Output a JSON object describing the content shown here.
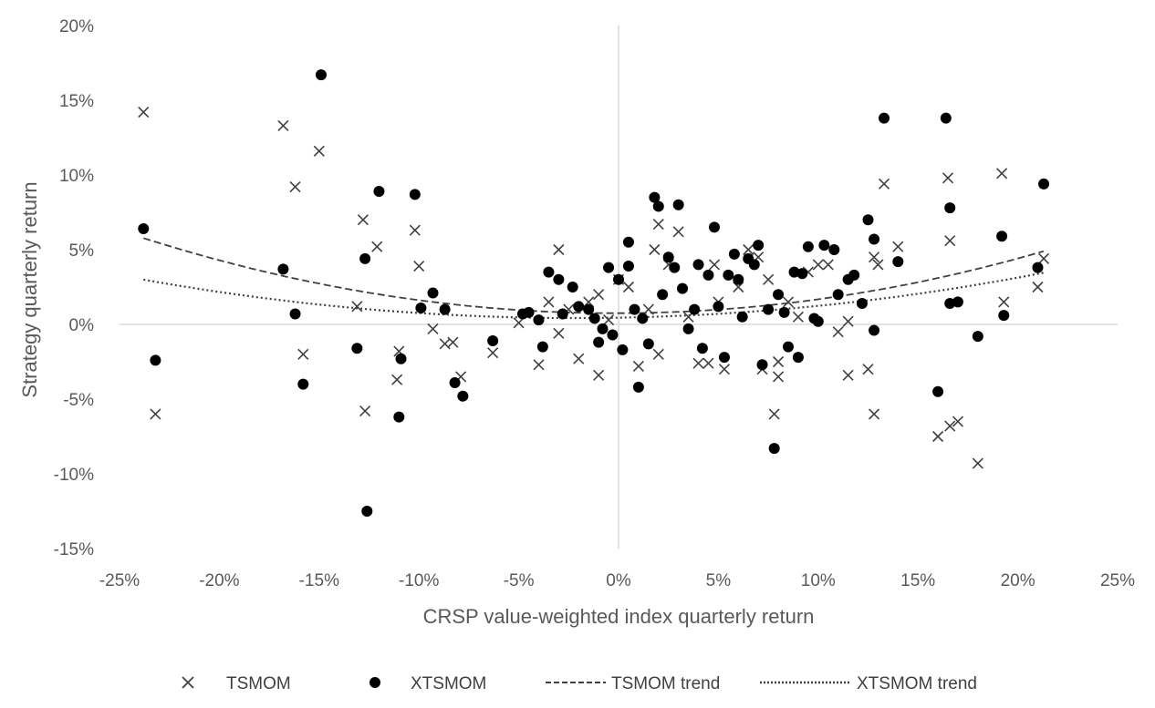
{
  "chart_data": {
    "type": "scatter",
    "title": "",
    "xlabel": "CRSP value-weighted index quarterly return",
    "ylabel": "Strategy quarterly return",
    "xlim": [
      -0.25,
      0.25
    ],
    "ylim": [
      -0.15,
      0.2
    ],
    "xticks": [
      -0.25,
      -0.2,
      -0.15,
      -0.1,
      -0.05,
      0,
      0.05,
      0.1,
      0.15,
      0.2,
      0.25
    ],
    "yticks": [
      -0.15,
      -0.1,
      -0.05,
      0,
      0.05,
      0.1,
      0.15,
      0.2
    ],
    "x_tick_labels": [
      "-25%",
      "-20%",
      "-15%",
      "-10%",
      "-5%",
      "0%",
      "5%",
      "10%",
      "15%",
      "20%",
      "25%"
    ],
    "y_tick_labels": [
      "-15%",
      "-10%",
      "-5%",
      "0%",
      "5%",
      "10%",
      "15%",
      "20%"
    ],
    "grid": false,
    "legend_position": "bottom",
    "colors": {
      "text": "#595959",
      "axis_line": "#d9d9d9",
      "marker": "#000000",
      "x_marker": "#404040",
      "trend": "#404040"
    },
    "series": [
      {
        "name": "TSMOM",
        "marker": "x",
        "points": [
          [
            -0.238,
            0.142
          ],
          [
            -0.232,
            -0.06
          ],
          [
            -0.168,
            0.133
          ],
          [
            -0.162,
            0.092
          ],
          [
            -0.158,
            -0.02
          ],
          [
            -0.15,
            0.116
          ],
          [
            -0.131,
            0.012
          ],
          [
            -0.128,
            0.07
          ],
          [
            -0.127,
            -0.058
          ],
          [
            -0.121,
            0.052
          ],
          [
            -0.111,
            -0.037
          ],
          [
            -0.11,
            -0.018
          ],
          [
            -0.102,
            0.063
          ],
          [
            -0.1,
            0.039
          ],
          [
            -0.093,
            -0.003
          ],
          [
            -0.087,
            -0.013
          ],
          [
            -0.083,
            -0.012
          ],
          [
            -0.079,
            -0.035
          ],
          [
            -0.063,
            -0.019
          ],
          [
            -0.05,
            0.001
          ],
          [
            -0.04,
            -0.027
          ],
          [
            -0.035,
            0.015
          ],
          [
            -0.03,
            0.05
          ],
          [
            -0.03,
            -0.006
          ],
          [
            -0.025,
            0.01
          ],
          [
            -0.02,
            -0.023
          ],
          [
            -0.015,
            0.015
          ],
          [
            -0.01,
            0.02
          ],
          [
            -0.01,
            -0.034
          ],
          [
            -0.005,
            0.003
          ],
          [
            0.0,
            0.03
          ],
          [
            0.005,
            0.025
          ],
          [
            0.01,
            -0.028
          ],
          [
            0.015,
            0.01
          ],
          [
            0.018,
            0.05
          ],
          [
            0.02,
            0.067
          ],
          [
            0.02,
            -0.02
          ],
          [
            0.025,
            0.04
          ],
          [
            0.03,
            0.062
          ],
          [
            0.035,
            0.005
          ],
          [
            0.04,
            -0.026
          ],
          [
            0.045,
            -0.026
          ],
          [
            0.048,
            0.04
          ],
          [
            0.05,
            0.015
          ],
          [
            0.053,
            -0.03
          ],
          [
            0.06,
            0.025
          ],
          [
            0.065,
            0.05
          ],
          [
            0.07,
            0.045
          ],
          [
            0.072,
            -0.03
          ],
          [
            0.075,
            0.03
          ],
          [
            0.078,
            -0.06
          ],
          [
            0.08,
            -0.025
          ],
          [
            0.08,
            -0.035
          ],
          [
            0.085,
            0.015
          ],
          [
            0.09,
            0.005
          ],
          [
            0.095,
            0.035
          ],
          [
            0.1,
            0.04
          ],
          [
            0.105,
            0.04
          ],
          [
            0.11,
            -0.005
          ],
          [
            0.115,
            -0.034
          ],
          [
            0.115,
            0.002
          ],
          [
            0.125,
            -0.03
          ],
          [
            0.128,
            0.045
          ],
          [
            0.128,
            -0.06
          ],
          [
            0.13,
            0.04
          ],
          [
            0.133,
            0.094
          ],
          [
            0.14,
            0.052
          ],
          [
            0.16,
            -0.075
          ],
          [
            0.165,
            0.098
          ],
          [
            0.166,
            0.056
          ],
          [
            0.166,
            -0.068
          ],
          [
            0.17,
            -0.065
          ],
          [
            0.18,
            -0.093
          ],
          [
            0.192,
            0.101
          ],
          [
            0.193,
            0.015
          ],
          [
            0.21,
            0.025
          ],
          [
            0.213,
            0.044
          ]
        ]
      },
      {
        "name": "XTSMOM",
        "marker": "dot",
        "points": [
          [
            -0.238,
            0.064
          ],
          [
            -0.232,
            -0.024
          ],
          [
            -0.168,
            0.037
          ],
          [
            -0.162,
            0.007
          ],
          [
            -0.158,
            -0.04
          ],
          [
            -0.149,
            0.167
          ],
          [
            -0.131,
            -0.016
          ],
          [
            -0.127,
            0.044
          ],
          [
            -0.126,
            -0.125
          ],
          [
            -0.12,
            0.089
          ],
          [
            -0.11,
            -0.062
          ],
          [
            -0.109,
            -0.023
          ],
          [
            -0.102,
            0.087
          ],
          [
            -0.099,
            0.011
          ],
          [
            -0.093,
            0.021
          ],
          [
            -0.087,
            0.01
          ],
          [
            -0.082,
            -0.039
          ],
          [
            -0.078,
            -0.048
          ],
          [
            -0.063,
            -0.011
          ],
          [
            -0.048,
            0.007
          ],
          [
            -0.045,
            0.008
          ],
          [
            -0.04,
            0.003
          ],
          [
            -0.038,
            -0.015
          ],
          [
            -0.035,
            0.035
          ],
          [
            -0.03,
            0.03
          ],
          [
            -0.028,
            0.007
          ],
          [
            -0.023,
            0.025
          ],
          [
            -0.02,
            0.012
          ],
          [
            -0.015,
            0.01
          ],
          [
            -0.012,
            0.004
          ],
          [
            -0.01,
            -0.012
          ],
          [
            -0.008,
            -0.003
          ],
          [
            -0.005,
            0.038
          ],
          [
            -0.003,
            -0.007
          ],
          [
            0.0,
            0.03
          ],
          [
            0.002,
            -0.017
          ],
          [
            0.005,
            0.039
          ],
          [
            0.005,
            0.055
          ],
          [
            0.008,
            0.01
          ],
          [
            0.01,
            -0.042
          ],
          [
            0.012,
            0.004
          ],
          [
            0.015,
            -0.013
          ],
          [
            0.018,
            0.085
          ],
          [
            0.02,
            0.079
          ],
          [
            0.022,
            0.02
          ],
          [
            0.025,
            0.045
          ],
          [
            0.028,
            0.038
          ],
          [
            0.03,
            0.08
          ],
          [
            0.032,
            0.024
          ],
          [
            0.035,
            -0.003
          ],
          [
            0.038,
            0.01
          ],
          [
            0.04,
            0.04
          ],
          [
            0.042,
            -0.016
          ],
          [
            0.045,
            0.033
          ],
          [
            0.048,
            0.065
          ],
          [
            0.05,
            0.012
          ],
          [
            0.053,
            -0.022
          ],
          [
            0.055,
            0.033
          ],
          [
            0.058,
            0.047
          ],
          [
            0.06,
            0.03
          ],
          [
            0.062,
            0.005
          ],
          [
            0.065,
            0.044
          ],
          [
            0.068,
            0.04
          ],
          [
            0.07,
            0.053
          ],
          [
            0.072,
            -0.027
          ],
          [
            0.075,
            0.01
          ],
          [
            0.078,
            -0.083
          ],
          [
            0.08,
            0.02
          ],
          [
            0.083,
            0.008
          ],
          [
            0.085,
            -0.015
          ],
          [
            0.088,
            0.035
          ],
          [
            0.09,
            -0.022
          ],
          [
            0.092,
            0.034
          ],
          [
            0.095,
            0.052
          ],
          [
            0.098,
            0.004
          ],
          [
            0.1,
            0.002
          ],
          [
            0.103,
            0.053
          ],
          [
            0.108,
            0.05
          ],
          [
            0.11,
            0.02
          ],
          [
            0.115,
            0.03
          ],
          [
            0.118,
            0.033
          ],
          [
            0.122,
            0.014
          ],
          [
            0.125,
            0.07
          ],
          [
            0.128,
            -0.004
          ],
          [
            0.128,
            0.057
          ],
          [
            0.133,
            0.138
          ],
          [
            0.14,
            0.042
          ],
          [
            0.16,
            -0.045
          ],
          [
            0.164,
            0.138
          ],
          [
            0.166,
            0.078
          ],
          [
            0.166,
            0.014
          ],
          [
            0.17,
            0.015
          ],
          [
            0.18,
            -0.008
          ],
          [
            0.192,
            0.059
          ],
          [
            0.193,
            0.006
          ],
          [
            0.21,
            0.038
          ],
          [
            0.213,
            0.094
          ]
        ]
      },
      {
        "name": "TSMOM trend",
        "type": "trendline",
        "style": "dashed",
        "polynomial": [
          0.0075,
          0.003,
          0.9
        ],
        "x_range": [
          -0.238,
          0.213
        ]
      },
      {
        "name": "XTSMOM trend",
        "type": "trendline",
        "style": "dotted",
        "polynomial": [
          0.0045,
          0.024,
          0.55
        ],
        "x_range": [
          -0.238,
          0.213
        ]
      }
    ]
  }
}
